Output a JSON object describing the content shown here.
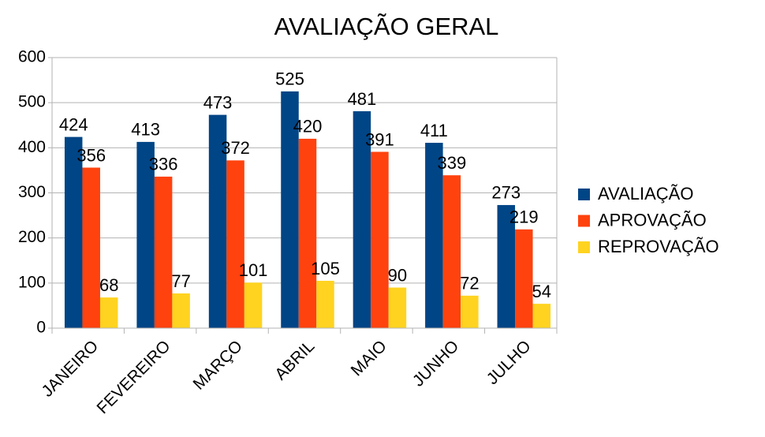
{
  "chart_data": {
    "type": "bar",
    "title": "AVALIAÇÃO GERAL",
    "categories": [
      "JANEIRO",
      "FEVEREIRO",
      "MARÇO",
      "ABRIL",
      "MAIO",
      "JUNHO",
      "JULHO"
    ],
    "series": [
      {
        "name": "AVALIAÇÃO",
        "color": "#004586",
        "values": [
          424,
          413,
          473,
          525,
          481,
          411,
          273
        ]
      },
      {
        "name": "APROVAÇÃO",
        "color": "#ff420e",
        "values": [
          356,
          336,
          372,
          420,
          391,
          339,
          219
        ]
      },
      {
        "name": "REPROVAÇÃO",
        "color": "#ffd320",
        "values": [
          68,
          77,
          101,
          105,
          90,
          72,
          54
        ]
      }
    ],
    "ylim": [
      0,
      600
    ],
    "yticks": [
      0,
      100,
      200,
      300,
      400,
      500,
      600
    ],
    "grid": true,
    "legend": "right"
  }
}
